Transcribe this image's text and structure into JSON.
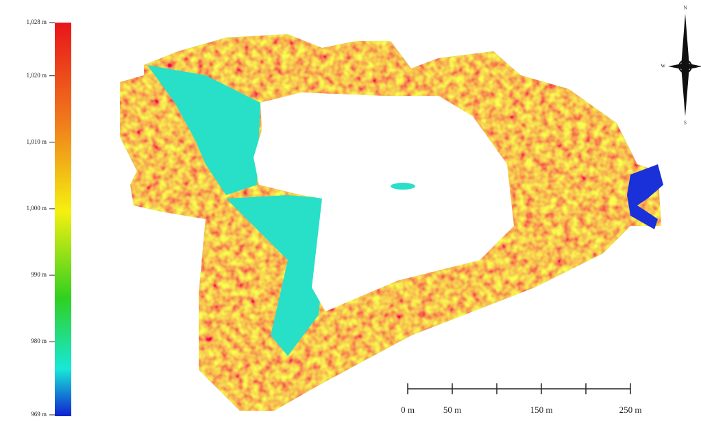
{
  "legend": {
    "range": [
      969,
      1028
    ],
    "ticks": [
      {
        "value": 1028,
        "label": "1,028 m"
      },
      {
        "value": 1020,
        "label": "1,020 m"
      },
      {
        "value": 1010,
        "label": "1,010 m"
      },
      {
        "value": 1000,
        "label": "1,000 m"
      },
      {
        "value": 990,
        "label": "990 m"
      },
      {
        "value": 980,
        "label": "980 m"
      },
      {
        "value": 969,
        "label": "969 m"
      }
    ]
  },
  "scale_bar": {
    "ticks": [
      {
        "value": 0,
        "label": "0 m"
      },
      {
        "value": 50,
        "label": "50 m"
      },
      {
        "value": 100,
        "label": null
      },
      {
        "value": 150,
        "label": "150 m"
      },
      {
        "value": 200,
        "label": null
      },
      {
        "value": 250,
        "label": "250 m"
      }
    ]
  },
  "compass": {
    "north": "N",
    "south": "S",
    "west": "W"
  }
}
